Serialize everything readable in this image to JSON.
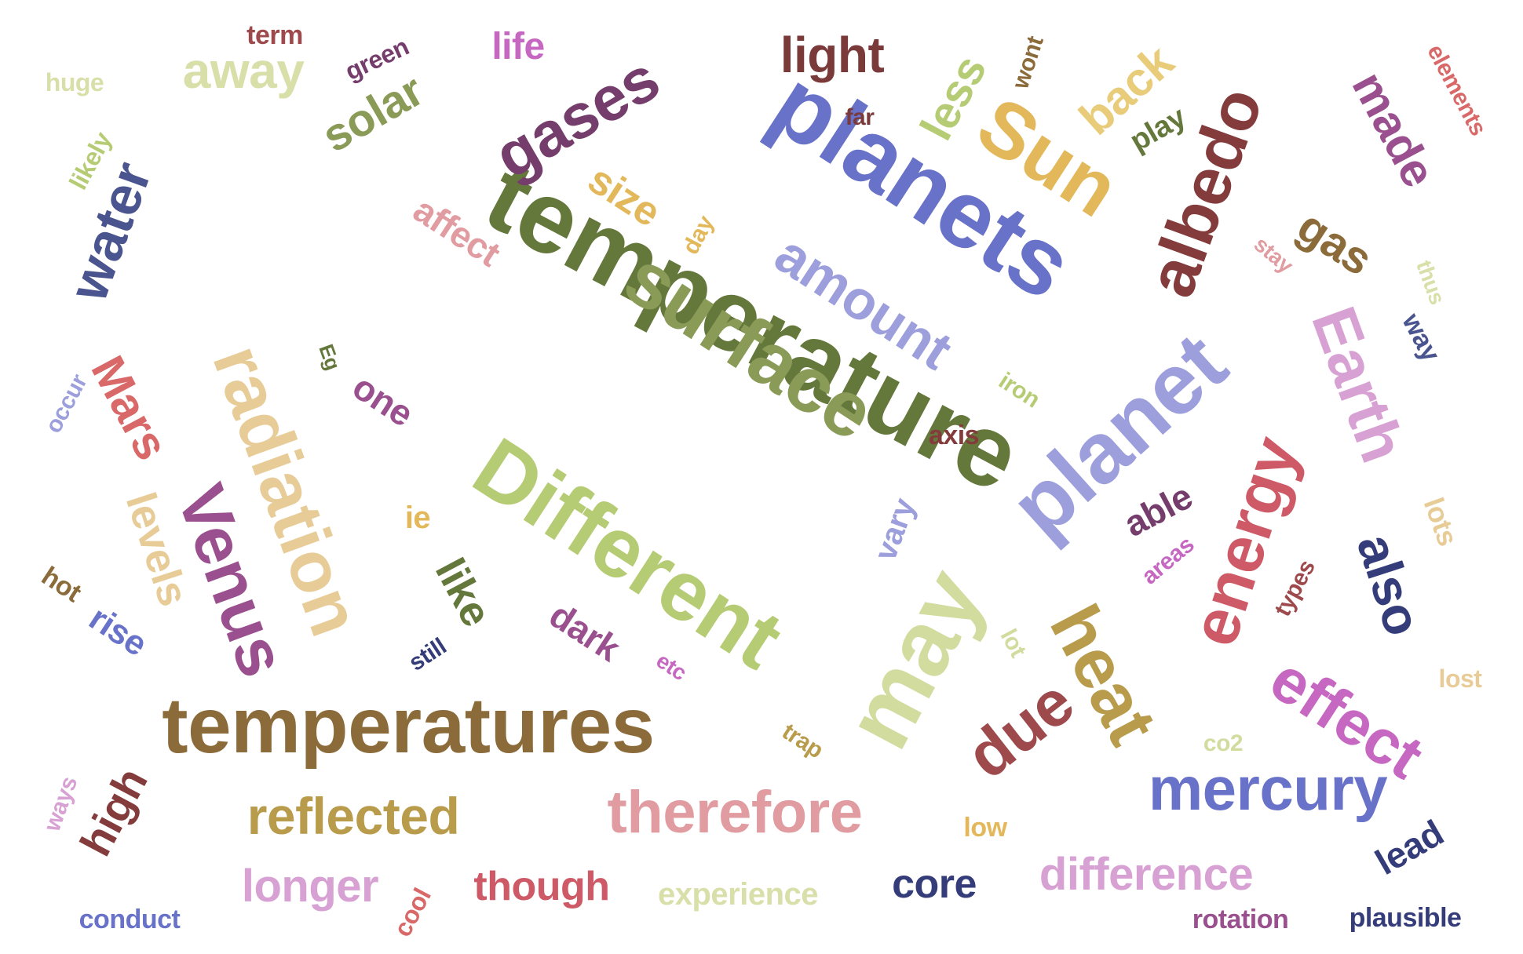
{
  "words": [
    {
      "text": "temperature",
      "color": "#65783c"
    },
    {
      "text": "planets",
      "color": "#6872c8"
    },
    {
      "text": "temperatures",
      "color": "#8c6b3a"
    },
    {
      "text": "surface",
      "color": "#8a9b57"
    },
    {
      "text": "planet",
      "color": "#9c9fdc"
    },
    {
      "text": "Different",
      "color": "#b6cc74"
    },
    {
      "text": "radiation",
      "color": "#e8cc98"
    },
    {
      "text": "Venus",
      "color": "#9a4f8e"
    },
    {
      "text": "therefore",
      "color": "#e19ca1"
    },
    {
      "text": "may",
      "color": "#d2dc9f"
    },
    {
      "text": "gases",
      "color": "#753d6c"
    },
    {
      "text": "albedo",
      "color": "#843b3c"
    },
    {
      "text": "Sun",
      "color": "#e3b85a"
    },
    {
      "text": "energy",
      "color": "#cd5a66"
    },
    {
      "text": "Earth",
      "color": "#d8a1d3"
    },
    {
      "text": "heat",
      "color": "#b89b4b"
    },
    {
      "text": "effect",
      "color": "#c667c1"
    },
    {
      "text": "due",
      "color": "#9e4a4c"
    },
    {
      "text": "mercury",
      "color": "#6872c8"
    },
    {
      "text": "reflected",
      "color": "#b89b4b"
    },
    {
      "text": "also",
      "color": "#353c7a"
    },
    {
      "text": "water",
      "color": "#4a558f"
    },
    {
      "text": "amount",
      "color": "#9c9fdc"
    },
    {
      "text": "light",
      "color": "#7a3a3a"
    },
    {
      "text": "away",
      "color": "#d8dfa8"
    },
    {
      "text": "difference",
      "color": "#d8a1d3"
    },
    {
      "text": "longer",
      "color": "#d8a1d3"
    },
    {
      "text": "Mars",
      "color": "#d96868"
    },
    {
      "text": "solar",
      "color": "#8a9b57"
    },
    {
      "text": "made",
      "color": "#9a4f8e"
    },
    {
      "text": "back",
      "color": "#e8cc7a"
    },
    {
      "text": "less",
      "color": "#b6cc74"
    },
    {
      "text": "gas",
      "color": "#8c6b3a"
    },
    {
      "text": "levels",
      "color": "#e8cc98"
    },
    {
      "text": "like",
      "color": "#65783c"
    },
    {
      "text": "high",
      "color": "#843b3c"
    },
    {
      "text": "though",
      "color": "#cd5a66"
    },
    {
      "text": "core",
      "color": "#353c7a"
    },
    {
      "text": "size",
      "color": "#e3b85a"
    },
    {
      "text": "affect",
      "color": "#e19ca1"
    },
    {
      "text": "dark",
      "color": "#9a4f8e"
    },
    {
      "text": "one",
      "color": "#9a4f8e"
    },
    {
      "text": "able",
      "color": "#753d6c"
    },
    {
      "text": "lead",
      "color": "#353c7a"
    },
    {
      "text": "experience",
      "color": "#d8dfa8"
    },
    {
      "text": "life",
      "color": "#c667c1"
    },
    {
      "text": "rise",
      "color": "#6872c8"
    },
    {
      "text": "play",
      "color": "#65783c"
    },
    {
      "text": "vary",
      "color": "#9c9fdc"
    },
    {
      "text": "lots",
      "color": "#e8cc98"
    },
    {
      "text": "plausible",
      "color": "#353c7a"
    },
    {
      "text": "rotation",
      "color": "#9a4f8e"
    },
    {
      "text": "conduct",
      "color": "#6872c8"
    },
    {
      "text": "term",
      "color": "#9e4a4c"
    },
    {
      "text": "green",
      "color": "#753d6c"
    },
    {
      "text": "huge",
      "color": "#d8dfa8"
    },
    {
      "text": "likely",
      "color": "#b6cc74"
    },
    {
      "text": "far",
      "color": "#7a3a3a"
    },
    {
      "text": "wont",
      "color": "#8c6b3a"
    },
    {
      "text": "elements",
      "color": "#d96868"
    },
    {
      "text": "day",
      "color": "#e3b85a"
    },
    {
      "text": "stay",
      "color": "#e19ca1"
    },
    {
      "text": "thus",
      "color": "#d8dfa8"
    },
    {
      "text": "way",
      "color": "#4a558f"
    },
    {
      "text": "Eg",
      "color": "#65783c"
    },
    {
      "text": "iron",
      "color": "#b6cc74"
    },
    {
      "text": "axis",
      "color": "#843b3c"
    },
    {
      "text": "occur",
      "color": "#9c9fdc"
    },
    {
      "text": "ie",
      "color": "#e3b85a"
    },
    {
      "text": "areas",
      "color": "#c667c1"
    },
    {
      "text": "types",
      "color": "#9e4a4c"
    },
    {
      "text": "lost",
      "color": "#e8cc98"
    },
    {
      "text": "hot",
      "color": "#8c6b3a"
    },
    {
      "text": "still",
      "color": "#353c7a"
    },
    {
      "text": "etc",
      "color": "#c667c1"
    },
    {
      "text": "lot",
      "color": "#d2dc9f"
    },
    {
      "text": "trap",
      "color": "#b89b4b"
    },
    {
      "text": "co2",
      "color": "#d2dc9f"
    },
    {
      "text": "low",
      "color": "#e3b85a"
    },
    {
      "text": "ways",
      "color": "#d8a1d3"
    },
    {
      "text": "cool",
      "color": "#d96868"
    }
  ]
}
